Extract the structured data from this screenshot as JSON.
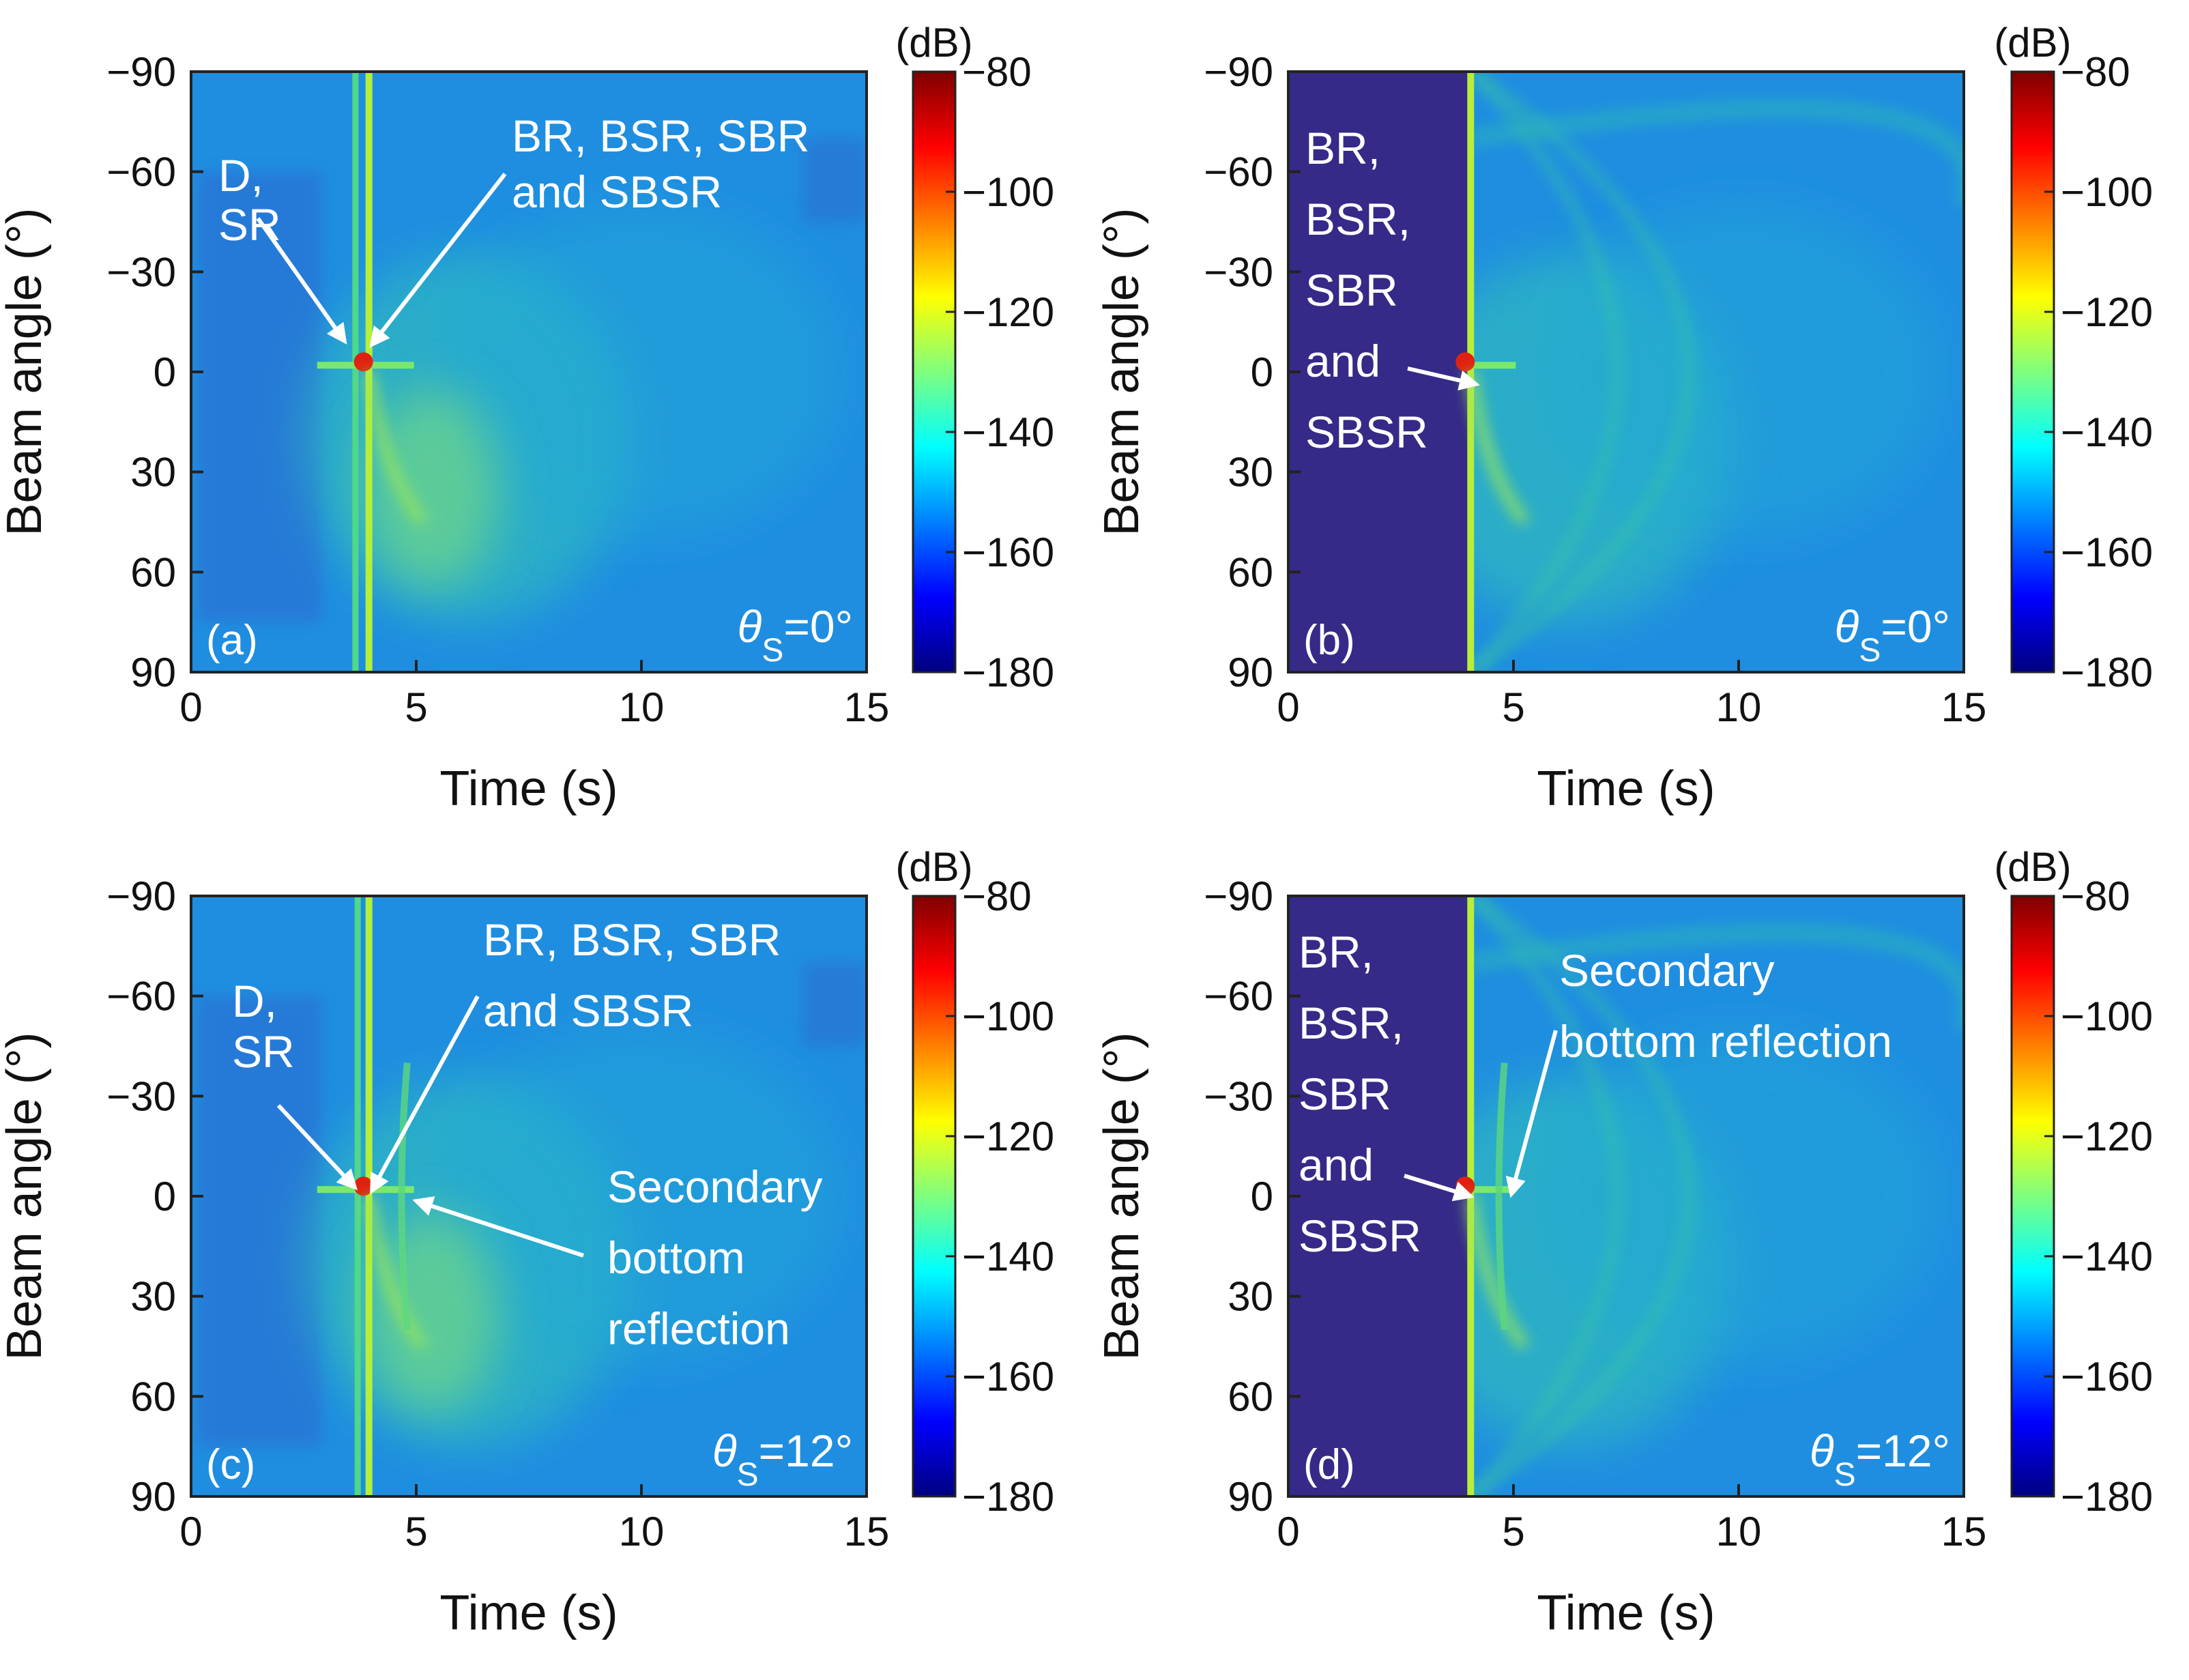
{
  "figure": {
    "panels": [
      "(a)",
      "(b)",
      "(c)",
      "(d)"
    ]
  },
  "chart_data": [
    {
      "type": "heatmap",
      "panel_label": "(a)",
      "xlabel": "Time (s)",
      "ylabel": "Beam angle (°)",
      "xlim": [
        0,
        15
      ],
      "ylim": [
        -90,
        90
      ],
      "xticks": [
        "0",
        "5",
        "10",
        "15"
      ],
      "yticks": [
        "−90",
        "−60",
        "−30",
        "0",
        "30",
        "60",
        "90"
      ],
      "colorbar": {
        "unit": "(dB)",
        "range": [
          -180,
          -80
        ],
        "ticks": [
          "−80",
          "−100",
          "−120",
          "−140",
          "−160",
          "−180"
        ]
      },
      "blank_before_s": 0,
      "direct_arrival_s": 3.65,
      "bottom_arrival_s": 3.95,
      "secondary_arrival_s": null,
      "theta_s": "=0°",
      "annotations": [
        {
          "lines": [
            "D,",
            "SR"
          ]
        },
        {
          "lines": [
            "BR, BSR, SBR",
            "and SBSR"
          ]
        }
      ]
    },
    {
      "type": "heatmap",
      "panel_label": "(b)",
      "xlabel": "Time (s)",
      "ylabel": "Beam angle (°)",
      "xlim": [
        0,
        15
      ],
      "ylim": [
        -90,
        90
      ],
      "xticks": [
        "0",
        "5",
        "10",
        "15"
      ],
      "yticks": [
        "−90",
        "−60",
        "−30",
        "0",
        "30",
        "60",
        "90"
      ],
      "colorbar": {
        "unit": "(dB)",
        "range": [
          -180,
          -80
        ],
        "ticks": [
          "−80",
          "−100",
          "−120",
          "−140",
          "−160",
          "−180"
        ]
      },
      "blank_before_s": 4.0,
      "direct_arrival_s": null,
      "bottom_arrival_s": 4.05,
      "secondary_arrival_s": null,
      "theta_s": "=0°",
      "annotations": [
        {
          "lines": [
            "BR,",
            "BSR,",
            "SBR",
            "and",
            "SBSR"
          ]
        }
      ]
    },
    {
      "type": "heatmap",
      "panel_label": "(c)",
      "xlabel": "Time (s)",
      "ylabel": "Beam angle (°)",
      "xlim": [
        0,
        15
      ],
      "ylim": [
        -90,
        90
      ],
      "xticks": [
        "0",
        "5",
        "10",
        "15"
      ],
      "yticks": [
        "−90",
        "−60",
        "−30",
        "0",
        "30",
        "60",
        "90"
      ],
      "colorbar": {
        "unit": "(dB)",
        "range": [
          -180,
          -80
        ],
        "ticks": [
          "−80",
          "−100",
          "−120",
          "−140",
          "−160",
          "−180"
        ]
      },
      "blank_before_s": 0,
      "direct_arrival_s": 3.7,
      "bottom_arrival_s": 3.95,
      "secondary_arrival_s": 4.8,
      "theta_s": "=12°",
      "annotations": [
        {
          "lines": [
            "D,",
            "SR"
          ]
        },
        {
          "lines": [
            "BR, BSR, SBR",
            "and SBSR"
          ]
        },
        {
          "lines": [
            "Secondary",
            "bottom",
            "reflection"
          ]
        }
      ]
    },
    {
      "type": "heatmap",
      "panel_label": "(d)",
      "xlabel": "Time (s)",
      "ylabel": "Beam angle (°)",
      "xlim": [
        0,
        15
      ],
      "ylim": [
        -90,
        90
      ],
      "xticks": [
        "0",
        "5",
        "10",
        "15"
      ],
      "yticks": [
        "−90",
        "−60",
        "−30",
        "0",
        "30",
        "60",
        "90"
      ],
      "colorbar": {
        "unit": "(dB)",
        "range": [
          -180,
          -80
        ],
        "ticks": [
          "−80",
          "−100",
          "−120",
          "−140",
          "−160",
          "−180"
        ]
      },
      "blank_before_s": 4.0,
      "direct_arrival_s": null,
      "bottom_arrival_s": 4.05,
      "secondary_arrival_s": 4.8,
      "theta_s": "=12°",
      "annotations": [
        {
          "lines": [
            "BR,",
            "BSR,",
            "SBR",
            "and",
            "SBSR"
          ]
        },
        {
          "lines": [
            "Secondary",
            "bottom reflection"
          ]
        }
      ]
    }
  ],
  "colors": {
    "colormap": [
      "#352a87",
      "#0f5cdd",
      "#1481d6",
      "#06a4ca",
      "#2eb7a4",
      "#87bf77",
      "#d1bb59",
      "#fec832",
      "#f9fb0e"
    ],
    "jet": [
      "#00007f",
      "#0000ff",
      "#007fff",
      "#00ffff",
      "#7fff7f",
      "#ffff00",
      "#ff7f00",
      "#ff0000",
      "#7f0000"
    ],
    "background_field": "#1f8ee0",
    "blank_region": "#352a87",
    "annotation_text": "#ffffff"
  }
}
